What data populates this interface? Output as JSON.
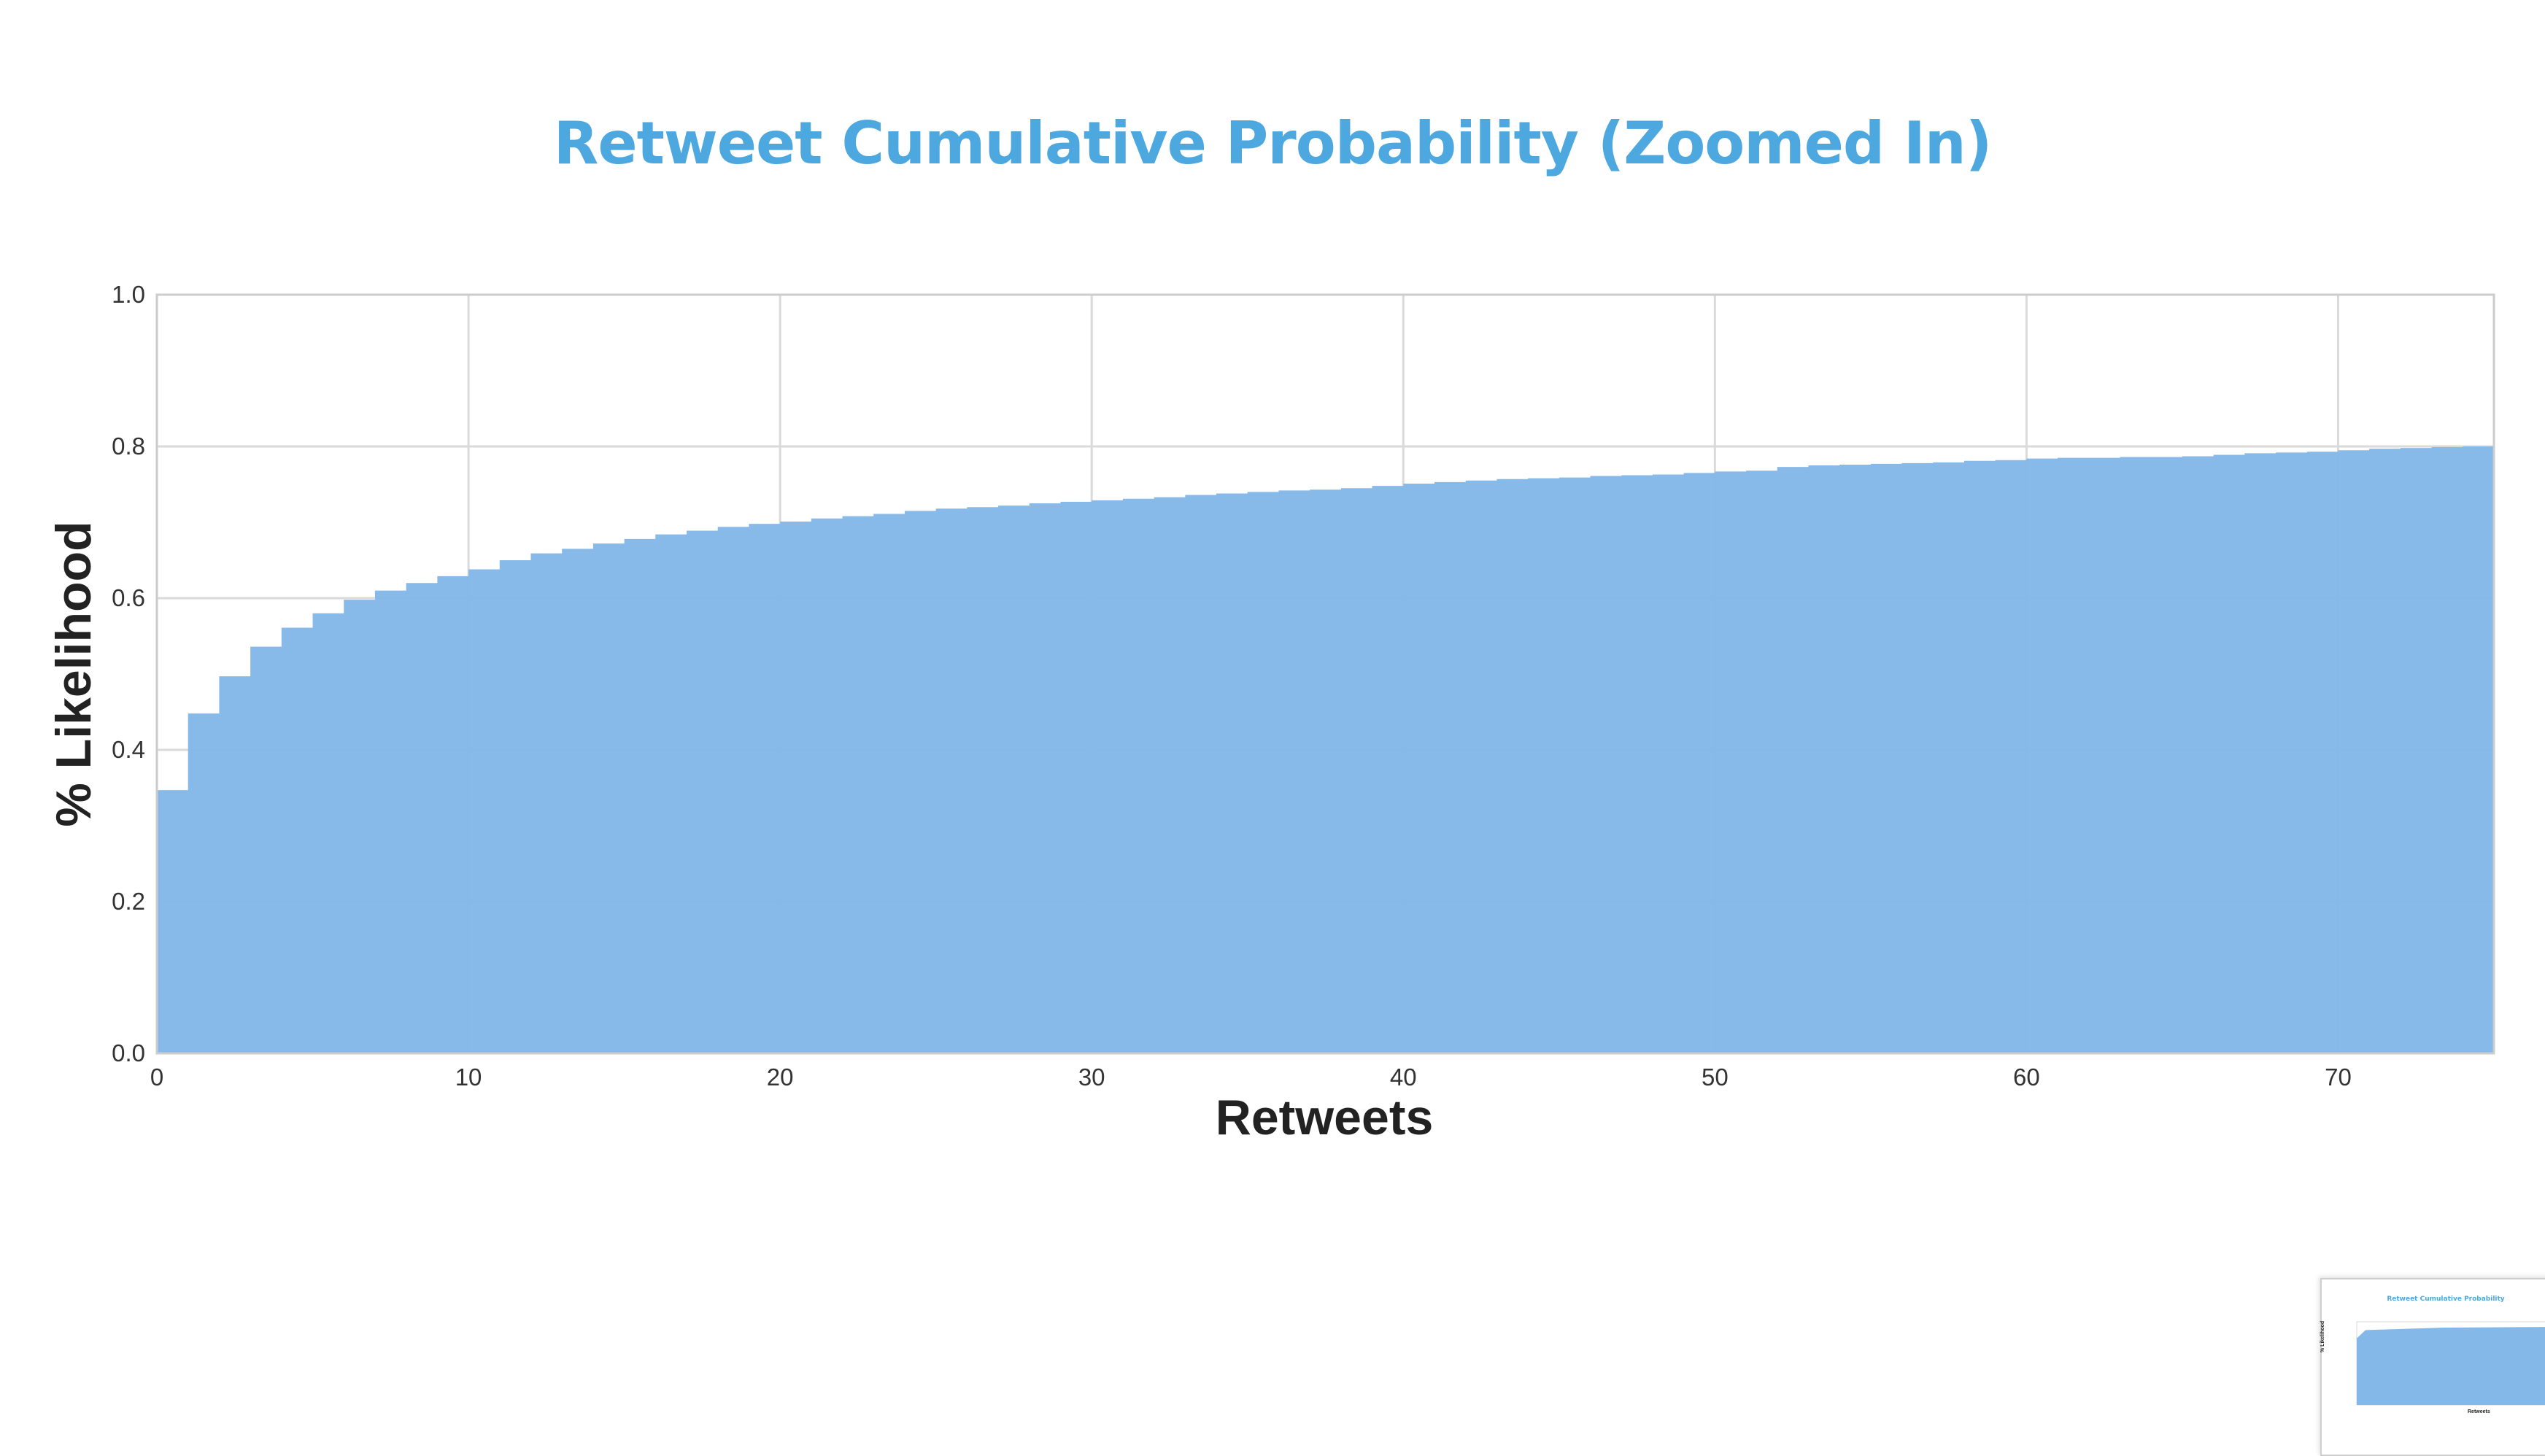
{
  "colors": {
    "title": "#4ea8e0",
    "fill": "#84b8e8",
    "grid": "#dadada",
    "frame": "#cccccc"
  },
  "slide": {
    "title": "Retweet Cumulative Probability (Zoomed In)"
  },
  "thumbnail": {
    "title": "Retweet Cumulative Probability",
    "ylabel": "% Likelihood",
    "xlabel": "Retweets"
  },
  "chart_data": {
    "type": "area",
    "step": true,
    "title": "Retweet Cumulative Probability (Zoomed In)",
    "xlabel": "Retweets",
    "ylabel": "% Likelihood",
    "xlim": [
      0,
      75
    ],
    "ylim": [
      0.0,
      1.0
    ],
    "xticks": [
      0,
      10,
      20,
      30,
      40,
      50,
      60,
      70
    ],
    "yticks": [
      0.0,
      0.2,
      0.4,
      0.6,
      0.8,
      1.0
    ],
    "ytick_labels": [
      "0.0",
      "0.2",
      "0.4",
      "0.6",
      "0.8",
      "1.0"
    ],
    "grid": true,
    "series": [
      {
        "x": [
          0,
          1,
          2,
          3,
          4,
          5,
          6,
          7,
          8,
          9,
          10,
          11,
          12,
          13,
          14,
          15,
          16,
          17,
          18,
          19,
          20,
          21,
          22,
          23,
          24,
          25,
          26,
          27,
          28,
          29,
          30,
          31,
          32,
          33,
          34,
          35,
          36,
          37,
          38,
          39,
          40,
          41,
          42,
          43,
          44,
          45,
          46,
          47,
          48,
          49,
          50,
          51,
          52,
          53,
          54,
          55,
          56,
          57,
          58,
          59,
          60,
          61,
          62,
          63,
          64,
          65,
          66,
          67,
          68,
          69,
          70,
          71,
          72,
          73,
          74,
          75
        ],
        "y": [
          0.347,
          0.448,
          0.497,
          0.536,
          0.561,
          0.58,
          0.598,
          0.61,
          0.62,
          0.629,
          0.638,
          0.65,
          0.659,
          0.665,
          0.672,
          0.678,
          0.684,
          0.689,
          0.694,
          0.698,
          0.701,
          0.705,
          0.708,
          0.711,
          0.715,
          0.718,
          0.72,
          0.722,
          0.725,
          0.727,
          0.729,
          0.731,
          0.733,
          0.736,
          0.738,
          0.74,
          0.742,
          0.743,
          0.745,
          0.748,
          0.751,
          0.753,
          0.755,
          0.757,
          0.758,
          0.759,
          0.761,
          0.762,
          0.763,
          0.765,
          0.767,
          0.768,
          0.773,
          0.775,
          0.776,
          0.777,
          0.778,
          0.779,
          0.781,
          0.782,
          0.784,
          0.785,
          0.785,
          0.786,
          0.786,
          0.787,
          0.789,
          0.791,
          0.792,
          0.793,
          0.795,
          0.797,
          0.798,
          0.799,
          0.8,
          0.8
        ]
      }
    ]
  }
}
